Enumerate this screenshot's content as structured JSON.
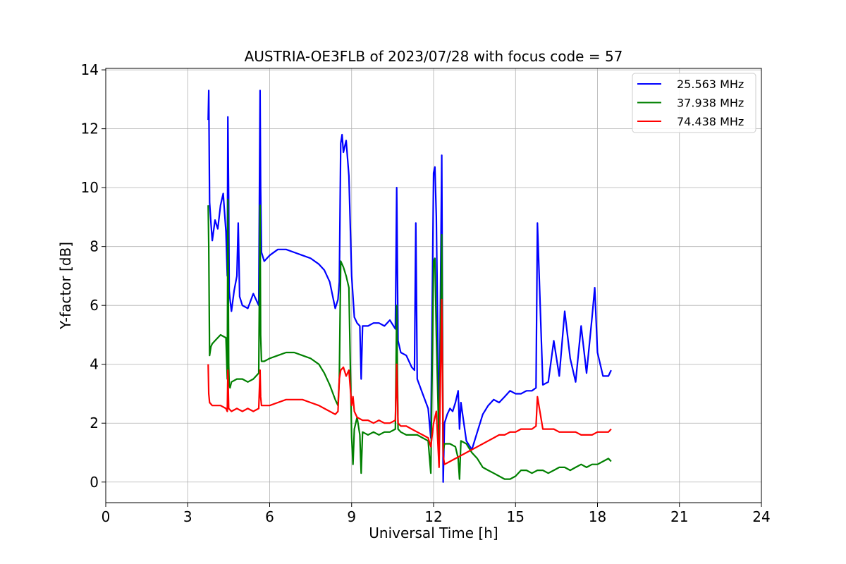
{
  "chart_data": {
    "type": "line",
    "title": "AUSTRIA-OE3FLB of 2023/07/28 with focus code = 57",
    "xlabel": "Universal Time [h]",
    "ylabel": "Y-factor [dB]",
    "xlim": [
      0,
      24
    ],
    "ylim": [
      -0.7,
      14.05
    ],
    "xticks": [
      0,
      3,
      6,
      9,
      12,
      15,
      18,
      21,
      24
    ],
    "yticks": [
      0,
      2,
      4,
      6,
      8,
      10,
      12,
      14
    ],
    "grid": true,
    "legend_position": "top-right",
    "series": [
      {
        "name": "25.563 MHz",
        "color": "#0000ff",
        "x": [
          3.75,
          3.77,
          3.8,
          3.85,
          3.9,
          4.0,
          4.1,
          4.2,
          4.3,
          4.4,
          4.45,
          4.47,
          4.5,
          4.52,
          4.55,
          4.6,
          4.7,
          4.8,
          4.85,
          4.9,
          5.0,
          5.2,
          5.4,
          5.6,
          5.65,
          5.67,
          5.7,
          5.8,
          6.0,
          6.3,
          6.6,
          6.9,
          7.2,
          7.5,
          7.8,
          8.0,
          8.2,
          8.4,
          8.5,
          8.55,
          8.6,
          8.65,
          8.7,
          8.8,
          8.9,
          9.0,
          9.1,
          9.2,
          9.3,
          9.35,
          9.4,
          9.6,
          9.8,
          10.0,
          10.2,
          10.4,
          10.6,
          10.65,
          10.7,
          10.8,
          11.0,
          11.2,
          11.3,
          11.35,
          11.4,
          11.6,
          11.8,
          11.9,
          12.0,
          12.05,
          12.1,
          12.2,
          12.3,
          12.35,
          12.4,
          12.5,
          12.6,
          12.7,
          12.8,
          12.9,
          12.95,
          13.0,
          13.2,
          13.4,
          13.6,
          13.8,
          14.0,
          14.2,
          14.4,
          14.6,
          14.8,
          15.0,
          15.2,
          15.4,
          15.6,
          15.75,
          15.8,
          16.0,
          16.2,
          16.4,
          16.6,
          16.8,
          17.0,
          17.2,
          17.4,
          17.6,
          17.8,
          17.9,
          18.0,
          18.2,
          18.4,
          18.5
        ],
        "y": [
          12.3,
          13.3,
          9.5,
          8.8,
          8.2,
          8.9,
          8.6,
          9.4,
          9.8,
          8.5,
          7.0,
          12.4,
          9.5,
          6.5,
          6.2,
          5.8,
          6.5,
          7.0,
          8.8,
          6.3,
          6.0,
          5.9,
          6.4,
          6.0,
          13.3,
          10.0,
          7.8,
          7.5,
          7.7,
          7.9,
          7.9,
          7.8,
          7.7,
          7.6,
          7.4,
          7.2,
          6.8,
          5.9,
          6.2,
          6.8,
          11.5,
          11.8,
          11.2,
          11.6,
          10.4,
          7.0,
          5.6,
          5.4,
          5.3,
          3.5,
          5.3,
          5.3,
          5.4,
          5.4,
          5.3,
          5.5,
          5.2,
          10.0,
          4.8,
          4.4,
          4.3,
          3.9,
          3.8,
          8.8,
          3.5,
          3.0,
          2.5,
          1.5,
          10.5,
          10.7,
          9.0,
          1.2,
          11.1,
          0.0,
          2.0,
          2.3,
          2.5,
          2.4,
          2.7,
          3.1,
          1.8,
          2.7,
          1.4,
          1.1,
          1.7,
          2.3,
          2.6,
          2.8,
          2.7,
          2.9,
          3.1,
          3.0,
          3.0,
          3.1,
          3.1,
          3.2,
          8.8,
          3.3,
          3.4,
          4.8,
          3.6,
          5.8,
          4.2,
          3.4,
          5.3,
          3.7,
          5.6,
          6.6,
          4.4,
          3.6,
          3.6,
          3.8
        ]
      },
      {
        "name": "37.938 MHz",
        "color": "#008000",
        "x": [
          3.75,
          3.77,
          3.8,
          3.85,
          3.9,
          4.0,
          4.2,
          4.4,
          4.45,
          4.47,
          4.5,
          4.52,
          4.55,
          4.6,
          4.8,
          5.0,
          5.2,
          5.4,
          5.6,
          5.65,
          5.67,
          5.7,
          5.8,
          6.0,
          6.3,
          6.6,
          6.9,
          7.2,
          7.5,
          7.8,
          8.0,
          8.2,
          8.4,
          8.5,
          8.55,
          8.6,
          8.7,
          8.8,
          8.9,
          9.0,
          9.05,
          9.1,
          9.2,
          9.3,
          9.35,
          9.4,
          9.6,
          9.8,
          10.0,
          10.2,
          10.4,
          10.6,
          10.65,
          10.7,
          10.8,
          11.0,
          11.2,
          11.4,
          11.6,
          11.8,
          11.9,
          12.0,
          12.05,
          12.1,
          12.2,
          12.3,
          12.35,
          12.4,
          12.6,
          12.8,
          12.9,
          12.95,
          13.0,
          13.2,
          13.4,
          13.6,
          13.8,
          14.0,
          14.2,
          14.4,
          14.6,
          14.8,
          15.0,
          15.2,
          15.4,
          15.6,
          15.8,
          16.0,
          16.2,
          16.4,
          16.6,
          16.8,
          17.0,
          17.2,
          17.4,
          17.6,
          17.8,
          18.0,
          18.2,
          18.4,
          18.5
        ],
        "y": [
          9.4,
          8.0,
          4.3,
          4.6,
          4.7,
          4.8,
          5.0,
          4.9,
          3.5,
          9.6,
          4.0,
          3.3,
          3.2,
          3.4,
          3.5,
          3.5,
          3.4,
          3.5,
          3.7,
          9.4,
          5.0,
          4.1,
          4.1,
          4.2,
          4.3,
          4.4,
          4.4,
          4.3,
          4.2,
          4.0,
          3.7,
          3.3,
          2.8,
          2.6,
          3.5,
          7.5,
          7.3,
          7.0,
          6.6,
          1.5,
          0.6,
          1.8,
          2.2,
          1.6,
          0.3,
          1.7,
          1.6,
          1.7,
          1.6,
          1.7,
          1.7,
          1.8,
          6.0,
          1.8,
          1.7,
          1.6,
          1.6,
          1.6,
          1.5,
          1.4,
          0.3,
          7.5,
          7.6,
          5.0,
          1.2,
          8.4,
          1.0,
          1.3,
          1.3,
          1.2,
          0.8,
          0.1,
          1.4,
          1.3,
          1.0,
          0.8,
          0.5,
          0.4,
          0.3,
          0.2,
          0.1,
          0.1,
          0.2,
          0.4,
          0.4,
          0.3,
          0.4,
          0.4,
          0.3,
          0.4,
          0.5,
          0.5,
          0.4,
          0.5,
          0.6,
          0.5,
          0.6,
          0.6,
          0.7,
          0.8,
          0.7
        ]
      },
      {
        "name": "74.438 MHz",
        "color": "#ff0000",
        "x": [
          3.75,
          3.77,
          3.8,
          3.9,
          4.0,
          4.2,
          4.4,
          4.45,
          4.47,
          4.5,
          4.6,
          4.8,
          5.0,
          5.2,
          5.4,
          5.6,
          5.65,
          5.67,
          5.7,
          5.8,
          6.0,
          6.3,
          6.6,
          6.9,
          7.2,
          7.5,
          7.8,
          8.0,
          8.2,
          8.4,
          8.5,
          8.55,
          8.6,
          8.7,
          8.8,
          8.9,
          9.0,
          9.05,
          9.1,
          9.2,
          9.4,
          9.6,
          9.8,
          10.0,
          10.2,
          10.4,
          10.6,
          10.65,
          10.7,
          10.8,
          11.0,
          11.2,
          11.4,
          11.6,
          11.8,
          11.9,
          12.0,
          12.1,
          12.2,
          12.3,
          12.35,
          12.4,
          12.6,
          12.8,
          13.0,
          13.2,
          13.4,
          13.6,
          13.8,
          14.0,
          14.2,
          14.4,
          14.6,
          14.8,
          15.0,
          15.2,
          15.4,
          15.6,
          15.75,
          15.8,
          16.0,
          16.2,
          16.4,
          16.6,
          16.8,
          17.0,
          17.2,
          17.4,
          17.6,
          17.8,
          18.0,
          18.2,
          18.4,
          18.5
        ],
        "y": [
          4.0,
          3.0,
          2.7,
          2.6,
          2.6,
          2.6,
          2.5,
          2.4,
          3.8,
          2.5,
          2.4,
          2.5,
          2.4,
          2.5,
          2.4,
          2.5,
          3.8,
          2.9,
          2.6,
          2.6,
          2.6,
          2.7,
          2.8,
          2.8,
          2.8,
          2.7,
          2.6,
          2.5,
          2.4,
          2.3,
          2.4,
          3.5,
          3.8,
          3.9,
          3.6,
          3.8,
          2.6,
          2.9,
          2.4,
          2.2,
          2.1,
          2.1,
          2.0,
          2.1,
          2.0,
          2.0,
          2.1,
          4.0,
          2.0,
          1.9,
          1.9,
          1.8,
          1.7,
          1.6,
          1.5,
          1.2,
          2.0,
          2.4,
          0.5,
          6.2,
          0.9,
          0.6,
          0.7,
          0.8,
          0.9,
          1.0,
          1.1,
          1.2,
          1.3,
          1.4,
          1.5,
          1.6,
          1.6,
          1.7,
          1.7,
          1.8,
          1.8,
          1.8,
          1.9,
          2.9,
          1.8,
          1.8,
          1.8,
          1.7,
          1.7,
          1.7,
          1.7,
          1.6,
          1.6,
          1.6,
          1.7,
          1.7,
          1.7,
          1.8
        ]
      }
    ]
  }
}
